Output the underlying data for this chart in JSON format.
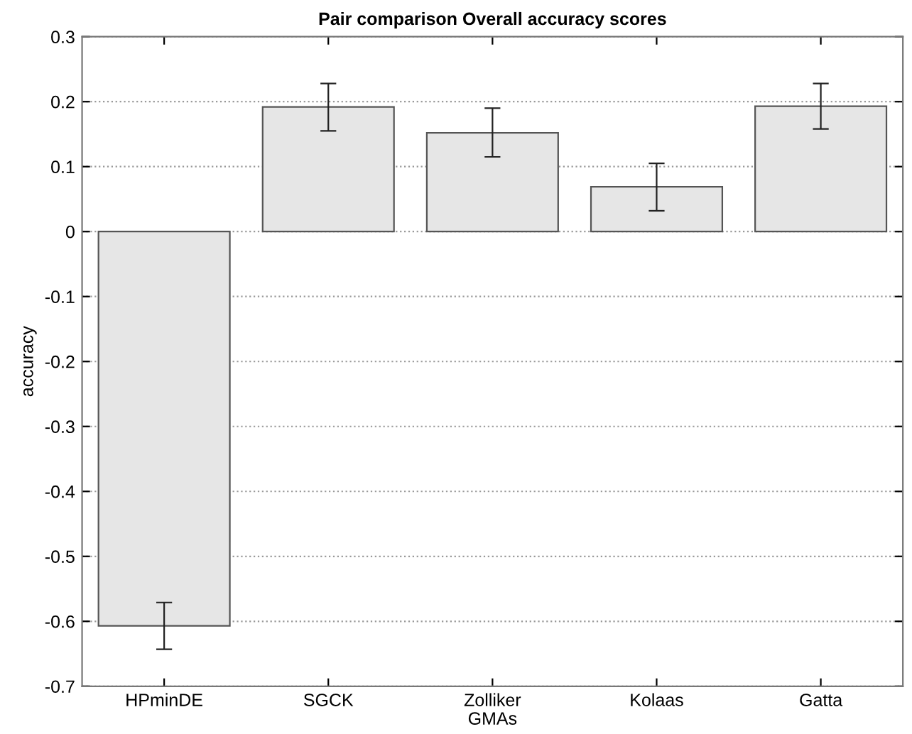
{
  "chart_data": {
    "type": "bar",
    "title": "Pair comparison Overall accuracy scores",
    "xlabel": "GMAs",
    "ylabel": "accuracy",
    "categories": [
      "HPminDE",
      "SGCK",
      "Zolliker",
      "Kolaas",
      "Gatta"
    ],
    "values": [
      -0.607,
      0.192,
      0.152,
      0.069,
      0.193
    ],
    "errors": [
      [
        -0.643,
        -0.571
      ],
      [
        0.155,
        0.228
      ],
      [
        0.115,
        0.19
      ],
      [
        0.032,
        0.105
      ],
      [
        0.158,
        0.228
      ]
    ],
    "color": "#e6e6e6",
    "ylim": [
      -0.7,
      0.3
    ],
    "yticks": [
      -0.7,
      -0.6,
      -0.5,
      -0.4,
      -0.3,
      -0.2,
      -0.1,
      0,
      0.1,
      0.2,
      0.3
    ],
    "grid": "y"
  }
}
